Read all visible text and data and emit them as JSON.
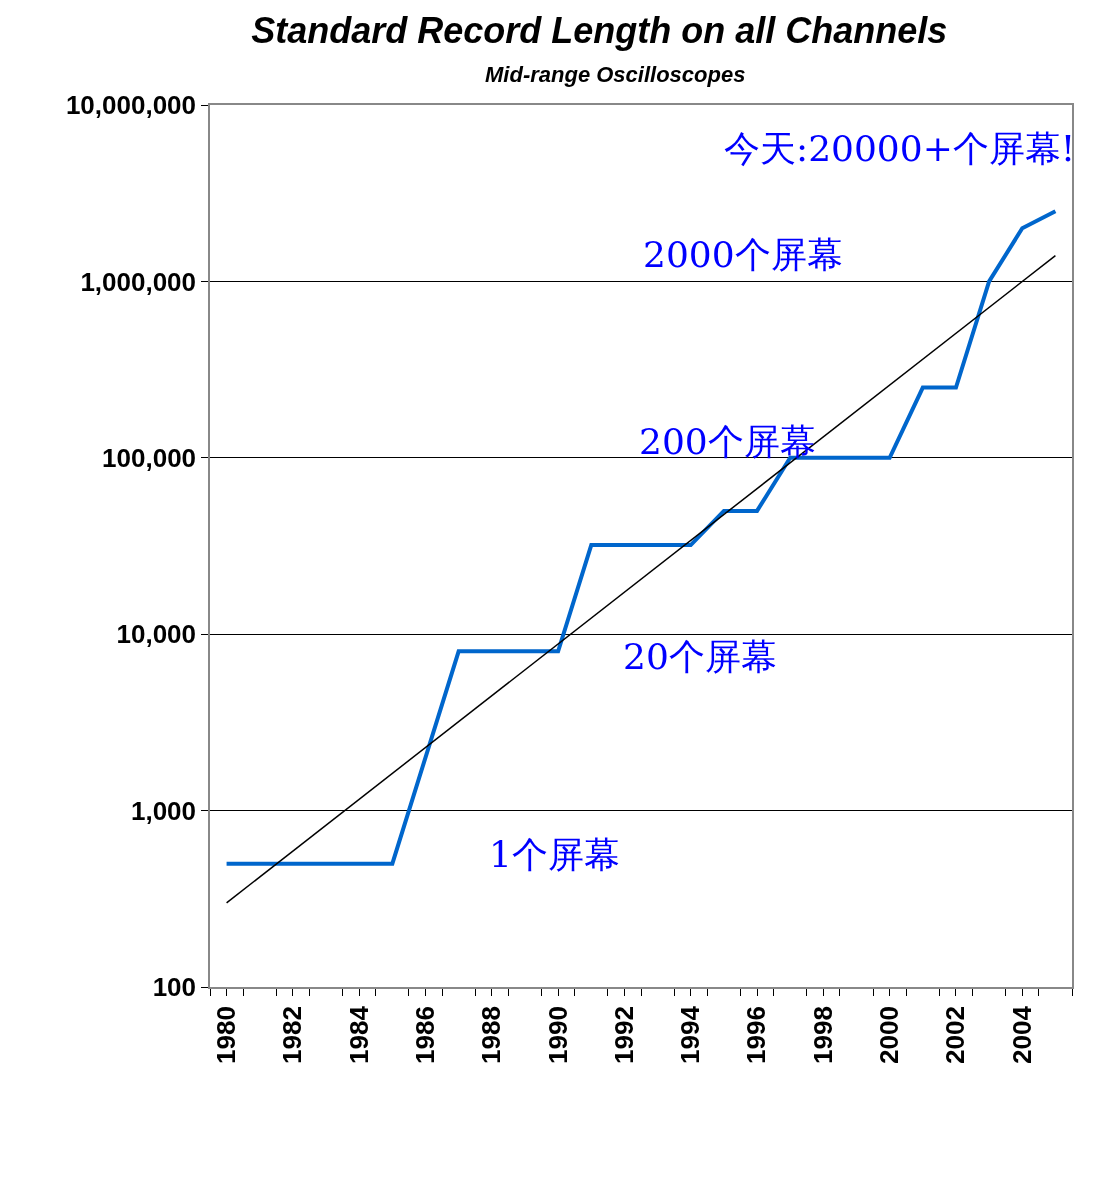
{
  "chart_data": {
    "type": "line",
    "title": "Standard Record Length on all Channels",
    "subtitle": "Mid-range Oscilloscopes",
    "xlim": [
      1979.5,
      2005.5
    ],
    "xticks": [
      1980,
      1982,
      1984,
      1986,
      1988,
      1990,
      1992,
      1994,
      1996,
      1998,
      2000,
      2002,
      2004,
      {
        "value": 1979.5,
        "label": null
      },
      {
        "value": 1980.5,
        "label": null
      },
      {
        "value": 1981.5,
        "label": null
      },
      {
        "value": 1982.5,
        "label": null
      },
      {
        "value": 1983.5,
        "label": null
      },
      {
        "value": 1984.5,
        "label": null
      },
      {
        "value": 1985.5,
        "label": null
      },
      {
        "value": 1986.5,
        "label": null
      },
      {
        "value": 1987.5,
        "label": null
      },
      {
        "value": 1988.5,
        "label": null
      },
      {
        "value": 1989.5,
        "label": null
      },
      {
        "value": 1990.5,
        "label": null
      },
      {
        "value": 1991.5,
        "label": null
      },
      {
        "value": 1992.5,
        "label": null
      },
      {
        "value": 1993.5,
        "label": null
      },
      {
        "value": 1994.5,
        "label": null
      },
      {
        "value": 1995.5,
        "label": null
      },
      {
        "value": 1996.5,
        "label": null
      },
      {
        "value": 1997.5,
        "label": null
      },
      {
        "value": 1998.5,
        "label": null
      },
      {
        "value": 1999.5,
        "label": null
      },
      {
        "value": 2000.5,
        "label": null
      },
      {
        "value": 2001.5,
        "label": null
      },
      {
        "value": 2002.5,
        "label": null
      },
      {
        "value": 2003.5,
        "label": null
      },
      {
        "value": 2004.5,
        "label": null
      },
      {
        "value": 2005.5,
        "label": null
      }
    ],
    "ylim": [
      100,
      10000000
    ],
    "log": true,
    "grid": "y",
    "yticks": [
      {
        "value": 100,
        "label": "100"
      },
      {
        "value": 1000,
        "label": "1,000"
      },
      {
        "value": 10000,
        "label": "10,000"
      },
      {
        "value": 100000,
        "label": "100,000"
      },
      {
        "value": 1000000,
        "label": "1,000,000"
      },
      {
        "value": 10000000,
        "label": "10,000,000"
      }
    ],
    "series": [
      {
        "color": "#0066cc",
        "x": [
          1980,
          1985,
          1987,
          1990,
          1991,
          1994,
          1995,
          1996,
          1997,
          2000,
          2001,
          2002,
          2003,
          2004,
          2005
        ],
        "values": [
          500,
          500,
          8000,
          8000,
          32000,
          32000,
          50000,
          50000,
          100000,
          100000,
          250000,
          250000,
          1000000,
          2000000,
          2500000
        ]
      },
      {
        "type": "line",
        "color": "#000000",
        "x": [
          1980,
          2005
        ],
        "values": [
          300,
          1400000
        ]
      }
    ],
    "annotations": [
      "1个屏幕",
      "20个屏幕",
      "200个屏幕",
      "2000个屏幕",
      "今天:20000+个屏幕!"
    ]
  }
}
